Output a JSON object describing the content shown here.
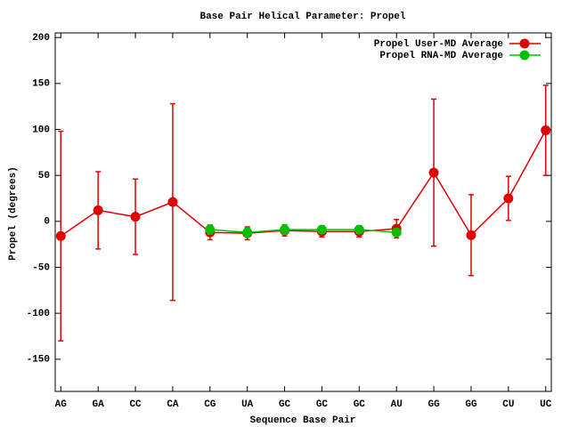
{
  "chart_data": {
    "type": "line",
    "title": "Base Pair Helical Parameter: Propel",
    "x_label": "Sequence Base Pair",
    "y_label": "Propel (degrees)",
    "categories": [
      "AG",
      "GA",
      "CC",
      "CA",
      "CG",
      "UA",
      "GC",
      "GC",
      "GC",
      "AU",
      "GG",
      "GG",
      "CU",
      "UC"
    ],
    "series": [
      {
        "name": "Propel User-MD Average",
        "color": "#e00000",
        "values": [
          -16,
          12,
          5,
          21,
          -12,
          -13,
          -10,
          -11,
          -11,
          -8,
          53,
          -15,
          25,
          99
        ],
        "errors": [
          114,
          42,
          41,
          107,
          8,
          7,
          6,
          6,
          6,
          10,
          80,
          44,
          24,
          49
        ]
      },
      {
        "name": "Propel RNA-MD Average",
        "color": "#00c000",
        "values": [
          null,
          null,
          null,
          null,
          -9,
          -12,
          -9,
          -9,
          -9,
          -12,
          null,
          null,
          null,
          null
        ],
        "errors": [
          null,
          null,
          null,
          null,
          5,
          5,
          5,
          4,
          4,
          3,
          null,
          null,
          null,
          null
        ]
      }
    ],
    "ylim": [
      -185,
      205
    ],
    "yticks": [
      -150,
      -100,
      -50,
      0,
      50,
      100,
      150,
      200
    ],
    "legend": "upper right"
  }
}
